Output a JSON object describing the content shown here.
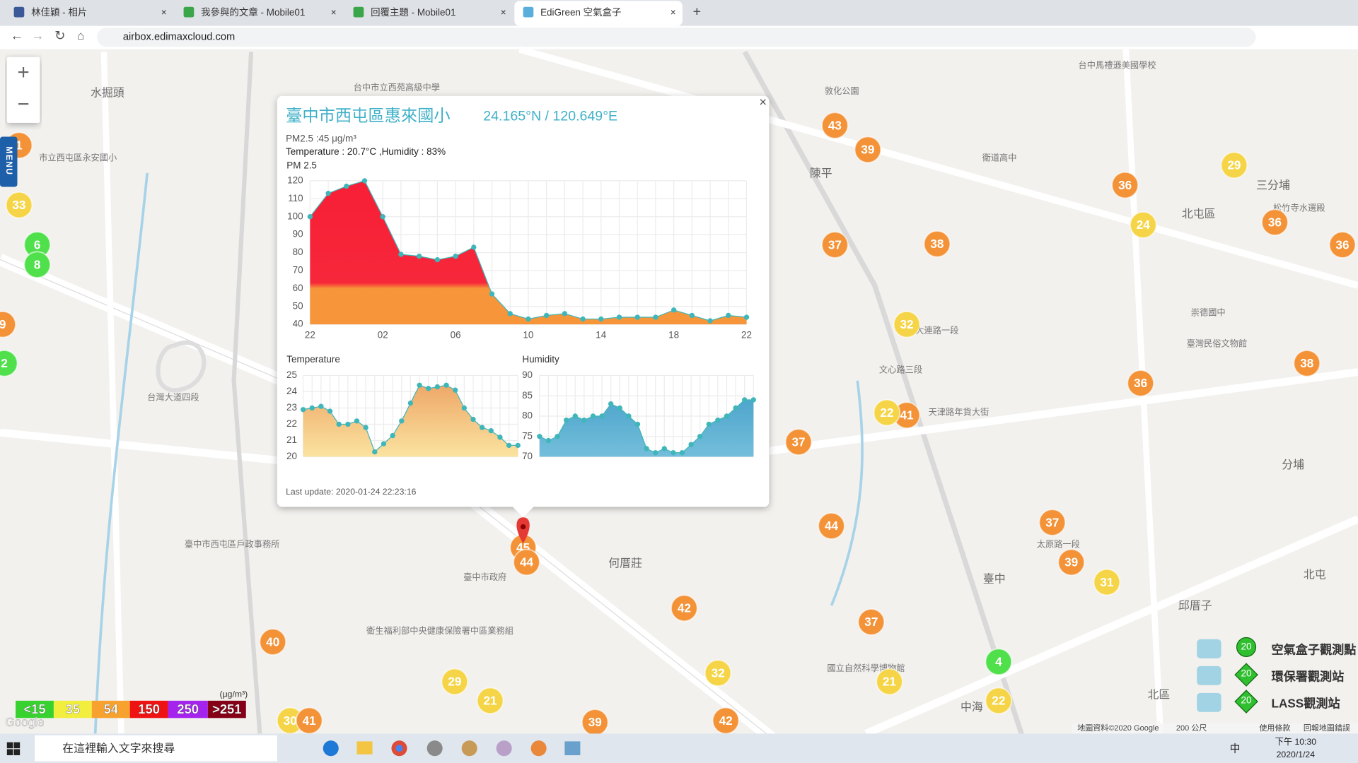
{
  "browser": {
    "tabs": [
      "林佳穎 - 相片",
      "我參與的文章 - Mobile01",
      "回覆主題 - Mobile01",
      "EdiGreen 空氣盒子"
    ],
    "url": "airbox.edimaxcloud.com"
  },
  "map": {
    "menu": "MENU",
    "zoom_in": "+",
    "zoom_out": "−",
    "places": [
      "水掘頭",
      "陳平",
      "北屯區",
      "三分埔",
      "何厝莊",
      "臺中",
      "邱厝子",
      "北屯",
      "分埔",
      "北區",
      "中海",
      "台中市立西苑高級中學",
      "衛道高中",
      "台中馬禮遜美國學校",
      "敦化公園",
      "國立自然科學博物館",
      "臺中市政府",
      "天津路年貨大街",
      "衛生福利部中央健康保險署中區業務組",
      "臺中市西屯區戶政事務所",
      "市立西屯區永安國小",
      "台灣大道四段",
      "文心路三段",
      "大連路一段",
      "太原路一段",
      "崇德國中",
      "臺灣民俗文物館",
      "松竹寺水選殿"
    ],
    "markers": [
      {
        "label": "1",
        "color": "#f39237"
      },
      {
        "label": "33",
        "color": "#f5d547"
      },
      {
        "label": "6",
        "color": "#4fe04b"
      },
      {
        "label": "8",
        "color": "#4fe04b"
      },
      {
        "label": "9",
        "color": "#f39237"
      },
      {
        "label": "2",
        "color": "#4fe04b"
      },
      {
        "label": "43",
        "color": "#f39237"
      },
      {
        "label": "39",
        "color": "#f39237"
      },
      {
        "label": "29",
        "color": "#f5d547"
      },
      {
        "label": "36",
        "color": "#f39237"
      },
      {
        "label": "24",
        "color": "#f5d547"
      },
      {
        "label": "36",
        "color": "#f39237"
      },
      {
        "label": "36",
        "color": "#f39237"
      },
      {
        "label": "37",
        "color": "#f39237"
      },
      {
        "label": "38",
        "color": "#f39237"
      },
      {
        "label": "32",
        "color": "#f5d547"
      },
      {
        "label": "38",
        "color": "#f39237"
      },
      {
        "label": "36",
        "color": "#f39237"
      },
      {
        "label": "41",
        "color": "#f39237"
      },
      {
        "label": "22",
        "color": "#f5d547"
      },
      {
        "label": "37",
        "color": "#f39237"
      },
      {
        "label": "44",
        "color": "#f39237"
      },
      {
        "label": "37",
        "color": "#f39237"
      },
      {
        "label": "39",
        "color": "#f39237"
      },
      {
        "label": "31",
        "color": "#f5d547"
      },
      {
        "label": "45",
        "color": "#f39237"
      },
      {
        "label": "44",
        "color": "#f39237"
      },
      {
        "label": "42",
        "color": "#f39237"
      },
      {
        "label": "37",
        "color": "#f39237"
      },
      {
        "label": "4",
        "color": "#4fe04b"
      },
      {
        "label": "40",
        "color": "#f39237"
      },
      {
        "label": "32",
        "color": "#f5d547"
      },
      {
        "label": "29",
        "color": "#f5d547"
      },
      {
        "label": "21",
        "color": "#f5d547"
      },
      {
        "label": "21",
        "color": "#f5d547"
      },
      {
        "label": "22",
        "color": "#f5d547"
      },
      {
        "label": "39",
        "color": "#f39237"
      },
      {
        "label": "42",
        "color": "#f39237"
      },
      {
        "label": "30",
        "color": "#f5d547"
      },
      {
        "label": "41",
        "color": "#f39237"
      }
    ],
    "legend": {
      "unit": "(μg/m³)",
      "levels": [
        {
          "label": "<15",
          "color": "#38d230"
        },
        {
          "label": "35",
          "color": "#f2ee3e"
        },
        {
          "label": "54",
          "color": "#f7a22e"
        },
        {
          "label": "150",
          "color": "#ee1212"
        },
        {
          "label": "250",
          "color": "#a424ee"
        },
        {
          "label": ">251",
          "color": "#850016"
        }
      ]
    },
    "stations": [
      {
        "label": "空氣盒子觀測點",
        "count": "20"
      },
      {
        "label": "環保署觀測站",
        "count": "20"
      },
      {
        "label": "LASS觀測站",
        "count": "20"
      }
    ],
    "footer": [
      "地圖資料©2020 Google",
      "200 公尺",
      "使用條款",
      "回報地圖錯誤"
    ],
    "logo": "Google"
  },
  "popup": {
    "close": "×",
    "name": "臺中市西屯區惠來國小",
    "coords": "24.165°N / 120.649°E",
    "pm": "PM2.5 :45 μg/m³",
    "weather": "Temperature : 20.7°C ,Humidity : 83%",
    "last_update": "Last update: 2020-01-24 22:23:16"
  },
  "chart_data": [
    {
      "type": "area",
      "title": "PM 2.5",
      "color": "#3fb6b9",
      "categories": [
        "22",
        null,
        null,
        null,
        "02",
        null,
        null,
        null,
        "06",
        null,
        null,
        null,
        "10",
        null,
        null,
        null,
        "14",
        null,
        null,
        null,
        "18",
        null,
        null,
        null,
        "22"
      ],
      "values": [
        100,
        113,
        117,
        120,
        100,
        79,
        78,
        76,
        78,
        83,
        57,
        46,
        43,
        45,
        46,
        43,
        43,
        44,
        44,
        44,
        48,
        45,
        42,
        45,
        44
      ],
      "ylim": [
        40,
        120
      ],
      "yticks": [
        40,
        50,
        60,
        70,
        80,
        90,
        100,
        110,
        120
      ],
      "grid": true
    },
    {
      "type": "area",
      "title": "Temperature",
      "color": "#3fb6b9",
      "values": [
        22.9,
        23.0,
        23.1,
        22.8,
        22.0,
        22.0,
        22.2,
        21.8,
        20.3,
        20.8,
        21.3,
        22.2,
        23.3,
        24.4,
        24.2,
        24.3,
        24.4,
        24.1,
        23.0,
        22.3,
        21.8,
        21.6,
        21.2,
        20.7,
        20.7
      ],
      "ylim": [
        20,
        25
      ],
      "yticks": [
        20,
        21,
        22,
        23,
        24,
        25
      ],
      "grid": true
    },
    {
      "type": "area",
      "title": "Humidity",
      "color": "#3fb6b9",
      "values": [
        75,
        74,
        75,
        79,
        80,
        79,
        80,
        80,
        83,
        82,
        80,
        78,
        72,
        71,
        72,
        71,
        71,
        73,
        75,
        78,
        79,
        80,
        82,
        84,
        84
      ],
      "ylim": [
        70,
        90
      ],
      "yticks": [
        70,
        75,
        80,
        85,
        90
      ],
      "grid": true
    }
  ],
  "taskbar": {
    "search": "在這裡輸入文字來搜尋",
    "time": "下午 10:30",
    "date": "2020/1/24",
    "ime": "中"
  }
}
